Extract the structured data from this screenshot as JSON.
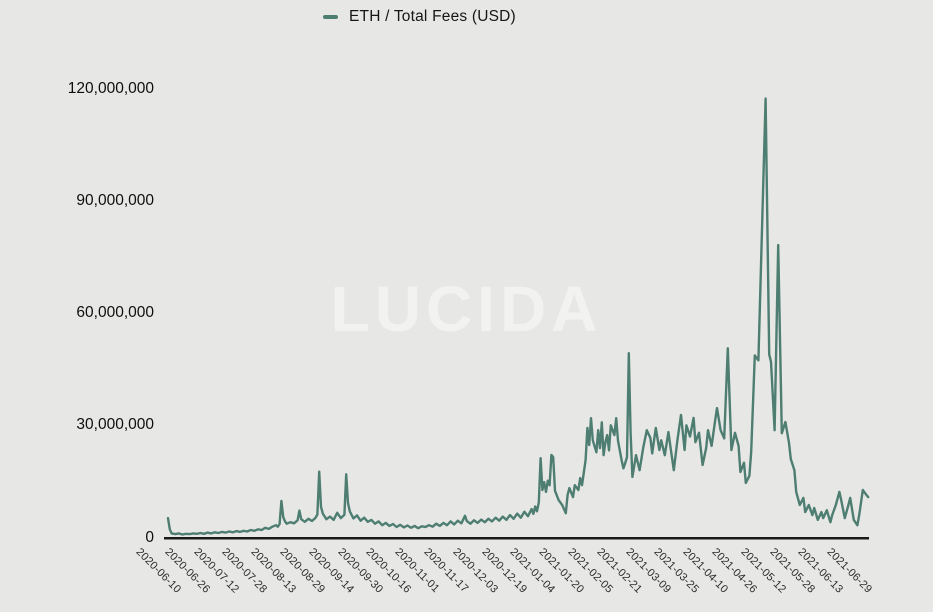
{
  "app": {
    "background_color": "#e7e8e6"
  },
  "legend": {
    "label": "ETH / Total Fees (USD)",
    "swatch_color": "#4e7d71"
  },
  "watermark": {
    "text": "LUCIDA",
    "color": "#f2f3f1"
  },
  "chart_data": {
    "type": "line",
    "title": "",
    "series_name": "ETH / Total Fees (USD)",
    "line_color": "#4e7d71",
    "axis_color": "#1a1a1a",
    "grid": false,
    "legend_position": "top-center",
    "x_start_date": "2020-06-10",
    "x_tick_interval_days": 16,
    "x_tick_labels": [
      "2020-06-10",
      "2020-06-26",
      "2020-07-12",
      "2020-07-28",
      "2020-08-13",
      "2020-08-29",
      "2020-09-14",
      "2020-09-30",
      "2020-10-16",
      "2020-11-01",
      "2020-11-17",
      "2020-12-03",
      "2020-12-19",
      "2021-01-04",
      "2021-01-20",
      "2021-02-05",
      "2021-02-21",
      "2021-03-09",
      "2021-03-25",
      "2021-04-10",
      "2021-04-26",
      "2021-05-12",
      "2021-05-28",
      "2021-06-13",
      "2021-06-29"
    ],
    "y_tick_labels": [
      "0",
      "30,000,000",
      "60,000,000",
      "90,000,000",
      "120,000,000"
    ],
    "y_tick_values_usd": [
      0,
      30000000,
      60000000,
      90000000,
      120000000
    ],
    "ylim_usd": [
      0,
      120000000
    ],
    "point_format": "[day_offset_from_2020-06-10, total_fees_usd_millions]",
    "points": [
      [
        0,
        5.2
      ],
      [
        1,
        2.2
      ],
      [
        2,
        1.1
      ],
      [
        4,
        0.9
      ],
      [
        6,
        1.1
      ],
      [
        8,
        0.8
      ],
      [
        10,
        1.0
      ],
      [
        12,
        0.9
      ],
      [
        14,
        1.1
      ],
      [
        16,
        1.0
      ],
      [
        18,
        1.2
      ],
      [
        20,
        1.0
      ],
      [
        22,
        1.3
      ],
      [
        24,
        1.1
      ],
      [
        26,
        1.4
      ],
      [
        28,
        1.2
      ],
      [
        30,
        1.5
      ],
      [
        32,
        1.3
      ],
      [
        34,
        1.6
      ],
      [
        36,
        1.4
      ],
      [
        38,
        1.7
      ],
      [
        40,
        1.5
      ],
      [
        42,
        1.8
      ],
      [
        44,
        1.6
      ],
      [
        46,
        2.0
      ],
      [
        48,
        1.8
      ],
      [
        50,
        2.2
      ],
      [
        52,
        2.0
      ],
      [
        54,
        2.6
      ],
      [
        56,
        2.3
      ],
      [
        58,
        2.9
      ],
      [
        60,
        3.3
      ],
      [
        61,
        2.9
      ],
      [
        62,
        3.6
      ],
      [
        63,
        9.8
      ],
      [
        64,
        5.5
      ],
      [
        65,
        4.3
      ],
      [
        66,
        3.7
      ],
      [
        68,
        4.1
      ],
      [
        70,
        3.8
      ],
      [
        72,
        4.6
      ],
      [
        73,
        7.2
      ],
      [
        74,
        4.9
      ],
      [
        76,
        4.2
      ],
      [
        78,
        5.0
      ],
      [
        80,
        4.4
      ],
      [
        82,
        5.3
      ],
      [
        83,
        6.2
      ],
      [
        84,
        17.6
      ],
      [
        85,
        8.2
      ],
      [
        86,
        6.4
      ],
      [
        88,
        4.9
      ],
      [
        90,
        5.6
      ],
      [
        92,
        4.7
      ],
      [
        94,
        6.6
      ],
      [
        96,
        5.2
      ],
      [
        98,
        6.1
      ],
      [
        99,
        16.9
      ],
      [
        100,
        9.2
      ],
      [
        101,
        7.0
      ],
      [
        103,
        5.1
      ],
      [
        105,
        5.9
      ],
      [
        107,
        4.5
      ],
      [
        109,
        5.3
      ],
      [
        111,
        4.2
      ],
      [
        113,
        4.7
      ],
      [
        115,
        3.7
      ],
      [
        117,
        4.3
      ],
      [
        119,
        3.3
      ],
      [
        121,
        3.9
      ],
      [
        123,
        3.1
      ],
      [
        125,
        3.6
      ],
      [
        127,
        2.8
      ],
      [
        129,
        3.4
      ],
      [
        131,
        2.7
      ],
      [
        133,
        3.2
      ],
      [
        135,
        2.6
      ],
      [
        137,
        3.1
      ],
      [
        139,
        2.5
      ],
      [
        141,
        3.0
      ],
      [
        143,
        2.8
      ],
      [
        145,
        3.3
      ],
      [
        147,
        2.9
      ],
      [
        149,
        3.7
      ],
      [
        151,
        3.1
      ],
      [
        153,
        3.9
      ],
      [
        155,
        3.3
      ],
      [
        157,
        4.3
      ],
      [
        159,
        3.5
      ],
      [
        161,
        4.5
      ],
      [
        163,
        3.8
      ],
      [
        165,
        5.8
      ],
      [
        166,
        4.4
      ],
      [
        168,
        3.7
      ],
      [
        170,
        4.6
      ],
      [
        172,
        3.9
      ],
      [
        174,
        4.8
      ],
      [
        176,
        4.1
      ],
      [
        178,
        5.0
      ],
      [
        180,
        4.3
      ],
      [
        182,
        5.3
      ],
      [
        184,
        4.5
      ],
      [
        186,
        5.6
      ],
      [
        188,
        4.7
      ],
      [
        190,
        6.0
      ],
      [
        192,
        5.0
      ],
      [
        194,
        6.4
      ],
      [
        196,
        5.3
      ],
      [
        198,
        6.9
      ],
      [
        200,
        5.7
      ],
      [
        202,
        7.6
      ],
      [
        203,
        6.3
      ],
      [
        204,
        8.3
      ],
      [
        205,
        7.0
      ],
      [
        206,
        9.4
      ],
      [
        207,
        21.2
      ],
      [
        208,
        12.7
      ],
      [
        209,
        14.8
      ],
      [
        210,
        12.2
      ],
      [
        211,
        15.2
      ],
      [
        212,
        14.0
      ],
      [
        213,
        22.1
      ],
      [
        214,
        21.5
      ],
      [
        215,
        12.5
      ],
      [
        217,
        10.0
      ],
      [
        219,
        8.7
      ],
      [
        221,
        6.5
      ],
      [
        222,
        11.4
      ],
      [
        223,
        13.2
      ],
      [
        225,
        10.8
      ],
      [
        226,
        14.0
      ],
      [
        228,
        12.7
      ],
      [
        229,
        15.9
      ],
      [
        230,
        14.0
      ],
      [
        232,
        20.7
      ],
      [
        233,
        29.3
      ],
      [
        234,
        24.7
      ],
      [
        235,
        31.9
      ],
      [
        236,
        26.0
      ],
      [
        238,
        22.8
      ],
      [
        239,
        28.7
      ],
      [
        240,
        23.9
      ],
      [
        241,
        30.8
      ],
      [
        242,
        22.0
      ],
      [
        243,
        25.5
      ],
      [
        244,
        27.4
      ],
      [
        245,
        23.3
      ],
      [
        246,
        30.0
      ],
      [
        248,
        27.4
      ],
      [
        249,
        31.9
      ],
      [
        250,
        25.9
      ],
      [
        252,
        20.7
      ],
      [
        253,
        18.5
      ],
      [
        254,
        19.9
      ],
      [
        255,
        21.5
      ],
      [
        256,
        49.3
      ],
      [
        257,
        28.0
      ],
      [
        258,
        16.2
      ],
      [
        260,
        22.0
      ],
      [
        262,
        18.0
      ],
      [
        264,
        24.0
      ],
      [
        266,
        28.7
      ],
      [
        268,
        26.6
      ],
      [
        269,
        22.5
      ],
      [
        271,
        29.3
      ],
      [
        273,
        23.4
      ],
      [
        274,
        26.0
      ],
      [
        276,
        22.0
      ],
      [
        278,
        28.2
      ],
      [
        279,
        24.7
      ],
      [
        281,
        18.0
      ],
      [
        283,
        26.0
      ],
      [
        285,
        32.8
      ],
      [
        287,
        23.4
      ],
      [
        288,
        30.0
      ],
      [
        290,
        27.0
      ],
      [
        292,
        32.0
      ],
      [
        293,
        25.5
      ],
      [
        295,
        28.0
      ],
      [
        297,
        19.4
      ],
      [
        299,
        24.0
      ],
      [
        300,
        28.7
      ],
      [
        302,
        24.5
      ],
      [
        304,
        31.4
      ],
      [
        305,
        34.6
      ],
      [
        307,
        28.7
      ],
      [
        309,
        26.5
      ],
      [
        311,
        50.6
      ],
      [
        313,
        23.4
      ],
      [
        315,
        28.0
      ],
      [
        317,
        24.5
      ],
      [
        318,
        17.5
      ],
      [
        320,
        20.0
      ],
      [
        321,
        14.6
      ],
      [
        323,
        16.5
      ],
      [
        324,
        23.0
      ],
      [
        326,
        48.7
      ],
      [
        328,
        47.4
      ],
      [
        332,
        117.4
      ],
      [
        334,
        49.0
      ],
      [
        335,
        47.0
      ],
      [
        337,
        28.7
      ],
      [
        339,
        78.2
      ],
      [
        341,
        27.9
      ],
      [
        343,
        30.9
      ],
      [
        345,
        25.3
      ],
      [
        346,
        21.0
      ],
      [
        348,
        18.0
      ],
      [
        349,
        12.2
      ],
      [
        351,
        8.7
      ],
      [
        353,
        10.6
      ],
      [
        354,
        6.8
      ],
      [
        356,
        8.7
      ],
      [
        358,
        6.0
      ],
      [
        359,
        7.9
      ],
      [
        361,
        4.7
      ],
      [
        363,
        6.8
      ],
      [
        364,
        5.2
      ],
      [
        366,
        7.3
      ],
      [
        368,
        4.1
      ],
      [
        369,
        6.0
      ],
      [
        371,
        8.7
      ],
      [
        373,
        12.2
      ],
      [
        374,
        10.0
      ],
      [
        376,
        5.2
      ],
      [
        378,
        8.7
      ],
      [
        379,
        10.6
      ],
      [
        381,
        4.7
      ],
      [
        383,
        3.3
      ],
      [
        384,
        6.0
      ],
      [
        386,
        12.7
      ],
      [
        388,
        11.4
      ],
      [
        389,
        10.8
      ]
    ]
  }
}
